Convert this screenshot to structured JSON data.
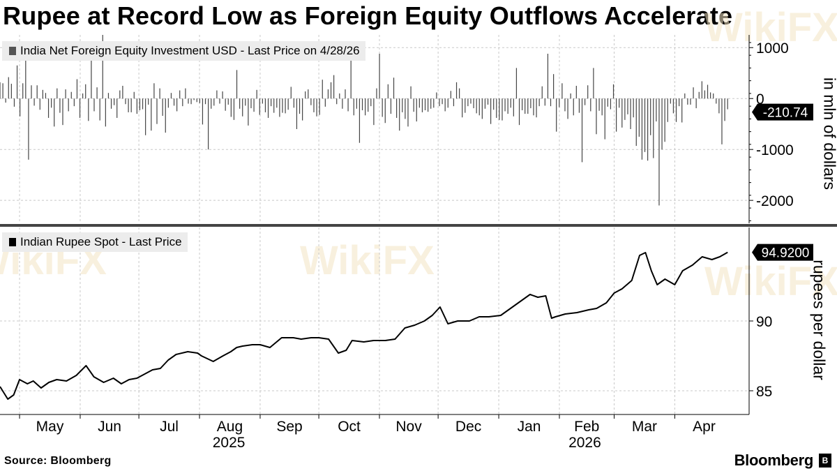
{
  "title": "Rupee at Record Low as Foreign Equity Outflows Accelerate",
  "source": "Source: Bloomberg",
  "brand": "Bloomberg",
  "watermark": "WikiFX",
  "colors": {
    "series": "#000000",
    "bar": "#444444",
    "grid": "#c8c8c8",
    "legend_bg": "#ececec",
    "label_bg": "#000000"
  },
  "chart_data": [
    {
      "type": "bar",
      "legend": "India Net Foreign Equity Investment USD - Last Price on 4/28/26",
      "ylabel": "in mln of dollars",
      "ylim": [
        -2450,
        1250
      ],
      "yticks": [
        1000,
        0,
        -1000,
        -2000
      ],
      "ytick_labels": [
        "1000",
        "0",
        "-1000",
        "-2000"
      ],
      "last_value": -210.74,
      "last_label": "-210.74",
      "x_start": "2025-04-21",
      "x_end": "2026-05-09",
      "grid": true,
      "values": [
        320,
        300,
        -80,
        420,
        290,
        -160,
        650,
        -350,
        300,
        880,
        -1200,
        260,
        -140,
        260,
        -220,
        170,
        110,
        -380,
        -180,
        -550,
        200,
        -280,
        -520,
        180,
        -250,
        130,
        -150,
        380,
        -380,
        100,
        280,
        -440,
        1050,
        -250,
        220,
        -430,
        1250,
        -550,
        110,
        -200,
        -130,
        -380,
        160,
        250,
        -110,
        -270,
        -270,
        130,
        -300,
        -230,
        -210,
        -720,
        -120,
        -630,
        300,
        -500,
        200,
        -340,
        -670,
        -180,
        110,
        -140,
        -250,
        160,
        -150,
        200,
        -100,
        -110,
        -30,
        -70,
        -90,
        -510,
        -110,
        -1000,
        -200,
        -140,
        160,
        -100,
        140,
        -240,
        -120,
        -360,
        -420,
        560,
        -200,
        -350,
        -140,
        -530,
        -190,
        -260,
        170,
        -320,
        -100,
        -270,
        -380,
        -150,
        -280,
        -180,
        -360,
        -280,
        -290,
        -220,
        230,
        -180,
        -600,
        -300,
        -430,
        140,
        180,
        -130,
        -270,
        -350,
        -320,
        370,
        -160,
        180,
        320,
        460,
        -110,
        100,
        -200,
        180,
        -250,
        1100,
        -330,
        -200,
        -870,
        -230,
        -330,
        -260,
        -150,
        -520,
        200,
        880,
        -360,
        -480,
        280,
        -300,
        410,
        -380,
        -630,
        -270,
        -400,
        -550,
        240,
        -260,
        -450,
        -180,
        -270,
        -230,
        -260,
        -200,
        -180,
        120,
        -150,
        -110,
        -250,
        -180,
        150,
        -150,
        320,
        200,
        -370,
        -280,
        -150,
        -100,
        -190,
        -290,
        -330,
        -400,
        -200,
        -120,
        -500,
        -220,
        -380,
        -420,
        -430,
        -250,
        -300,
        -180,
        -350,
        600,
        -520,
        -230,
        -300,
        -300,
        -190,
        -330,
        -370,
        -150,
        240,
        -140,
        880,
        -150,
        480,
        -650,
        -170,
        300,
        -250,
        -400,
        100,
        -330,
        250,
        -280,
        -1250,
        -130,
        260,
        -250,
        600,
        -700,
        -240,
        -330,
        -800,
        -160,
        -210,
        280,
        -650,
        -180,
        -570,
        -420,
        -310,
        -600,
        -370,
        -930,
        -750,
        -1200,
        -1050,
        -1220,
        -720,
        -1170,
        -450,
        -2100,
        -1000,
        -850,
        -460,
        -100,
        -290,
        -460,
        -150,
        -470,
        100,
        -120,
        -120,
        220,
        -190,
        130,
        340,
        160,
        270,
        120,
        100,
        -100,
        -290,
        -900,
        -440,
        -211
      ],
      "x_ticks": [
        {
          "label": "May",
          "date": "2025-05-01"
        },
        {
          "label": "Jun",
          "date": "2025-06-01"
        },
        {
          "label": "Jul",
          "date": "2025-07-01"
        },
        {
          "label": "Aug",
          "date": "2025-08-01"
        },
        {
          "label": "Sep",
          "date": "2025-09-01"
        },
        {
          "label": "Oct",
          "date": "2025-10-01"
        },
        {
          "label": "Nov",
          "date": "2025-11-01"
        },
        {
          "label": "Dec",
          "date": "2025-12-01"
        },
        {
          "label": "Jan",
          "date": "2026-01-01"
        },
        {
          "label": "Feb",
          "date": "2026-02-01"
        },
        {
          "label": "Mar",
          "date": "2026-03-01"
        },
        {
          "label": "Apr",
          "date": "2026-04-01"
        }
      ],
      "year_labels": [
        {
          "label": "2025",
          "date": "2025-08-16"
        },
        {
          "label": "2026",
          "date": "2026-02-14"
        }
      ]
    },
    {
      "type": "line",
      "legend": "Indian Rupee Spot - Last Price",
      "ylabel": "rupees per dollar",
      "ylim": [
        83.3,
        96.7
      ],
      "yticks": [
        90,
        85
      ],
      "ytick_labels": [
        "90",
        "85"
      ],
      "last_value": 94.92,
      "last_label": "94.9200",
      "grid": true,
      "x": [
        "2025-04-21",
        "2025-04-25",
        "2025-04-28",
        "2025-05-01",
        "2025-05-05",
        "2025-05-08",
        "2025-05-12",
        "2025-05-16",
        "2025-05-20",
        "2025-05-25",
        "2025-05-30",
        "2025-06-04",
        "2025-06-08",
        "2025-06-13",
        "2025-06-18",
        "2025-06-22",
        "2025-06-26",
        "2025-06-30",
        "2025-07-04",
        "2025-07-08",
        "2025-07-12",
        "2025-07-16",
        "2025-07-20",
        "2025-07-26",
        "2025-07-31",
        "2025-08-02",
        "2025-08-08",
        "2025-08-13",
        "2025-08-17",
        "2025-08-20",
        "2025-08-23",
        "2025-08-28",
        "2025-09-01",
        "2025-09-06",
        "2025-09-12",
        "2025-09-18",
        "2025-09-22",
        "2025-09-27",
        "2025-10-01",
        "2025-10-06",
        "2025-10-11",
        "2025-10-15",
        "2025-10-18",
        "2025-10-24",
        "2025-10-29",
        "2025-11-04",
        "2025-11-09",
        "2025-11-14",
        "2025-11-19",
        "2025-11-24",
        "2025-11-28",
        "2025-12-02",
        "2025-12-06",
        "2025-12-11",
        "2025-12-17",
        "2025-12-22",
        "2025-12-27",
        "2026-01-02",
        "2026-01-08",
        "2026-01-13",
        "2026-01-17",
        "2026-01-21",
        "2026-01-25",
        "2026-01-28",
        "2026-01-30",
        "2026-02-04",
        "2026-02-10",
        "2026-02-16",
        "2026-02-20",
        "2026-02-25",
        "2026-03-01",
        "2026-03-05",
        "2026-03-10",
        "2026-03-14",
        "2026-03-17",
        "2026-03-20",
        "2026-03-23",
        "2026-03-27",
        "2026-04-01",
        "2026-04-05",
        "2026-04-10",
        "2026-04-15",
        "2026-04-20",
        "2026-04-24",
        "2026-04-28"
      ],
      "y": [
        85.3,
        84.4,
        84.7,
        85.8,
        85.5,
        85.7,
        85.2,
        85.6,
        85.8,
        85.7,
        86.1,
        86.8,
        86.0,
        85.6,
        85.9,
        85.5,
        85.8,
        85.9,
        86.2,
        86.5,
        86.6,
        87.2,
        87.6,
        87.8,
        87.7,
        87.5,
        87.1,
        87.5,
        87.8,
        88.1,
        88.2,
        88.3,
        88.3,
        88.1,
        88.8,
        88.8,
        88.7,
        88.8,
        88.8,
        88.7,
        87.7,
        87.9,
        88.6,
        88.5,
        88.6,
        88.6,
        88.7,
        89.5,
        89.7,
        90.0,
        90.4,
        91.0,
        89.8,
        90.0,
        90.0,
        90.3,
        90.3,
        90.4,
        91.0,
        91.5,
        91.9,
        91.7,
        91.8,
        90.2,
        90.3,
        90.5,
        90.6,
        90.8,
        90.9,
        91.3,
        92.0,
        92.3,
        92.9,
        94.7,
        94.9,
        93.6,
        92.6,
        93.0,
        92.6,
        93.6,
        94.0,
        94.6,
        94.4,
        94.6,
        94.92
      ]
    }
  ]
}
